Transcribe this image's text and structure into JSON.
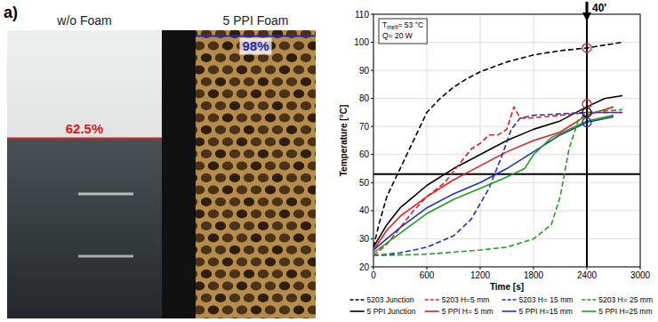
{
  "panel_label": "a)",
  "photos": [
    {
      "title": "w/o Foam",
      "melt_percent": 62.5,
      "melt_label": "62.5%",
      "color": "#d42020"
    },
    {
      "title": "5 PPI Foam",
      "melt_percent": 98,
      "melt_label": "98%",
      "color": "#2a2aa8"
    }
  ],
  "chart_data": {
    "type": "line",
    "x_label": "Time [s]",
    "y_label": "Temperature [°C]",
    "xlim": [
      0,
      3000
    ],
    "xticks": [
      0,
      600,
      1200,
      1800,
      2400,
      3000
    ],
    "ylim": [
      20,
      110
    ],
    "yticks": [
      20,
      30,
      40,
      50,
      60,
      70,
      80,
      90,
      100,
      110
    ],
    "grid": true,
    "legend": "bottom",
    "annotations": [
      {
        "text": "T",
        "sub": "melt",
        "tail": "= 53 °C"
      },
      {
        "text": "Q= 20 W"
      }
    ],
    "hline": {
      "y": 53,
      "color": "#000000"
    },
    "vline": {
      "x": 2400,
      "label": "40'"
    },
    "highlights": [
      {
        "x": 2400,
        "y": 98,
        "color": "#e02020"
      },
      {
        "x": 2400,
        "y": 78,
        "color": "#e02020"
      },
      {
        "x": 2400,
        "y": 75,
        "color": "#000000"
      },
      {
        "x": 2400,
        "y": 71.5,
        "color": "#2030c0"
      }
    ],
    "series": [
      {
        "name": "5203 Junction",
        "color": "#000000",
        "line_style": "dashed",
        "x": [
          0,
          60,
          150,
          300,
          450,
          600,
          750,
          900,
          1050,
          1200,
          1500,
          1800,
          2100,
          2400,
          2700,
          2800
        ],
        "values": [
          27,
          35,
          45,
          55,
          65,
          75,
          80,
          84,
          87,
          89.5,
          93,
          95.5,
          97,
          98,
          99.5,
          100
        ]
      },
      {
        "name": "5 PPI Junction",
        "color": "#000000",
        "line_style": "solid",
        "x": [
          0,
          150,
          300,
          450,
          600,
          900,
          1200,
          1500,
          1800,
          2100,
          2400,
          2600,
          2800
        ],
        "values": [
          27,
          35,
          41,
          45,
          49,
          55,
          60,
          65,
          69,
          72,
          77,
          80,
          81
        ]
      },
      {
        "name": "5203 H=5 mm",
        "color": "#e02020",
        "line_style": "dashed",
        "x": [
          0,
          150,
          300,
          450,
          600,
          800,
          1000,
          1100,
          1200,
          1300,
          1400,
          1500,
          1580,
          1650,
          1750,
          2100,
          2400,
          2800
        ],
        "values": [
          24,
          28,
          34,
          40,
          45,
          50,
          58,
          62,
          64,
          67,
          67,
          69,
          77,
          73,
          73,
          74,
          75,
          75
        ]
      },
      {
        "name": "5 PPI H= 5 mm",
        "color": "#e02020",
        "line_style": "solid",
        "x": [
          0,
          150,
          300,
          600,
          900,
          1200,
          1500,
          1800,
          2100,
          2400,
          2700
        ],
        "values": [
          26,
          33,
          38,
          45,
          51,
          56,
          61,
          65,
          68,
          74,
          77
        ]
      },
      {
        "name": "5203 H= 15 mm",
        "color": "#2030c0",
        "line_style": "dashed",
        "x": [
          0,
          300,
          600,
          900,
          1100,
          1300,
          1450,
          1550,
          1650,
          1800,
          2100,
          2400,
          2800
        ],
        "values": [
          24,
          25,
          27,
          31,
          37,
          48,
          60,
          69,
          73,
          74,
          74.5,
          75,
          75
        ]
      },
      {
        "name": "5 PPI H=15 mm",
        "color": "#2030c0",
        "line_style": "solid",
        "x": [
          0,
          150,
          300,
          600,
          900,
          1200,
          1500,
          1800,
          2100,
          2400,
          2700
        ],
        "values": [
          26,
          30,
          34,
          41,
          46,
          50,
          55,
          61,
          67,
          71.5,
          73.5
        ]
      },
      {
        "name": "5203 H= 25 mm",
        "color": "#20a020",
        "line_style": "dashed",
        "x": [
          0,
          600,
          1200,
          1500,
          1800,
          2000,
          2100,
          2200,
          2300,
          2400,
          2600,
          2800
        ],
        "values": [
          24,
          24.5,
          26,
          27,
          30,
          35,
          45,
          62,
          72,
          75,
          75.5,
          76
        ]
      },
      {
        "name": "5 PPI H=25 mm",
        "color": "#20a020",
        "line_style": "solid",
        "x": [
          0,
          300,
          600,
          900,
          1200,
          1500,
          1700,
          1800,
          2000,
          2200,
          2400,
          2700
        ],
        "values": [
          25,
          32,
          39,
          44,
          48,
          52,
          55,
          60,
          66,
          69,
          72,
          74
        ]
      }
    ]
  }
}
